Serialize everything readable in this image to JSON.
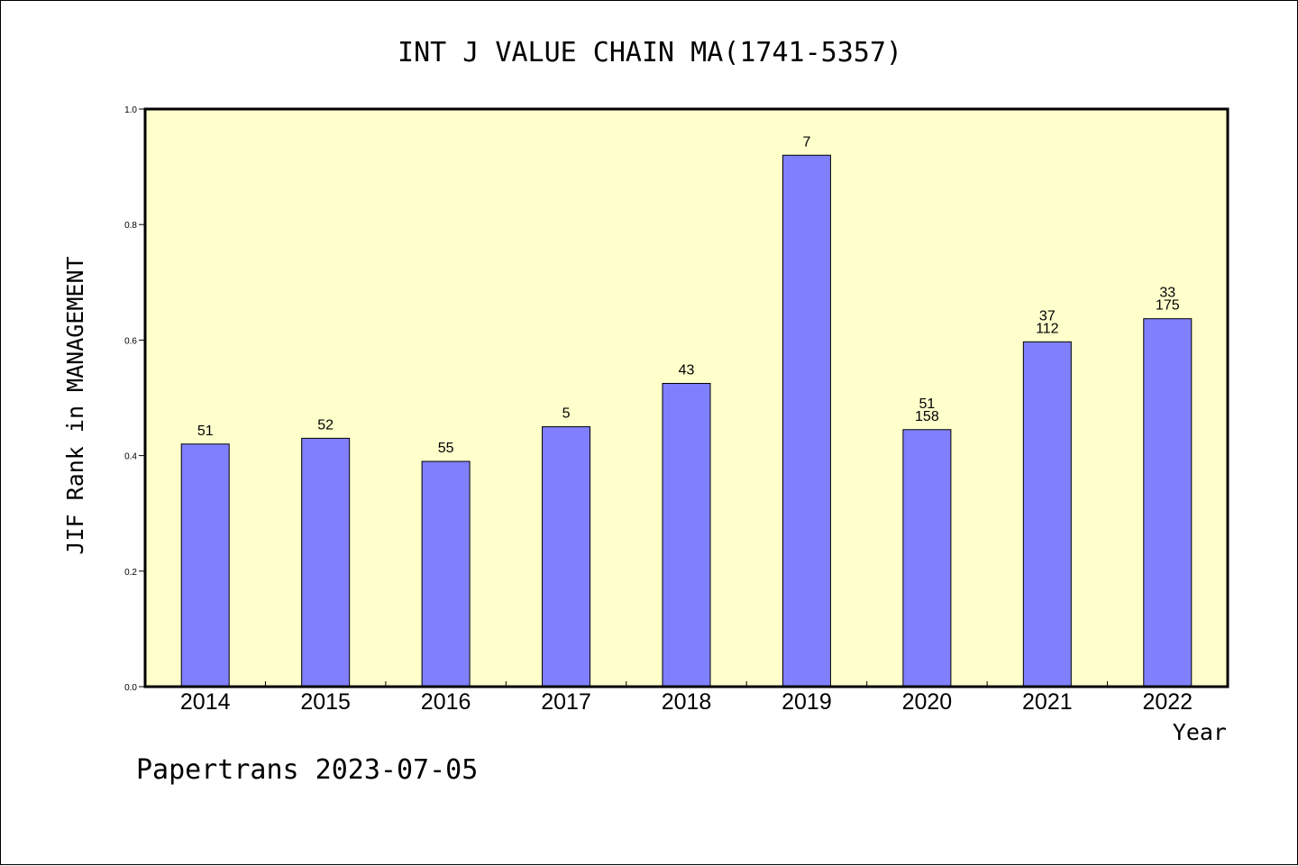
{
  "chart_data": {
    "type": "bar",
    "title": "INT J VALUE CHAIN MA(1741-5357)",
    "xlabel": "Year",
    "ylabel": "JIF Rank in MANAGEMENT",
    "footer": "Papertrans 2023-07-05",
    "ylim": [
      0,
      1.0
    ],
    "yticks": [
      "0.0",
      "0.2",
      "0.4",
      "0.6",
      "0.8",
      "1.0"
    ],
    "grid": false,
    "colors": {
      "plot_background": "#ffffcc",
      "bar_fill": "#8080ff",
      "bar_stroke": "#000000"
    },
    "categories": [
      "2014",
      "2015",
      "2016",
      "2017",
      "2018",
      "2019",
      "2020",
      "2021",
      "2022"
    ],
    "values": [
      0.42,
      0.43,
      0.39,
      0.45,
      0.525,
      0.92,
      0.445,
      0.597,
      0.637
    ],
    "annotations": [
      [
        "51"
      ],
      [
        "52"
      ],
      [
        "55"
      ],
      [
        "5"
      ],
      [
        "43"
      ],
      [
        "7"
      ],
      [
        "51",
        "158"
      ],
      [
        "37",
        "112"
      ],
      [
        "33",
        "175"
      ]
    ]
  }
}
